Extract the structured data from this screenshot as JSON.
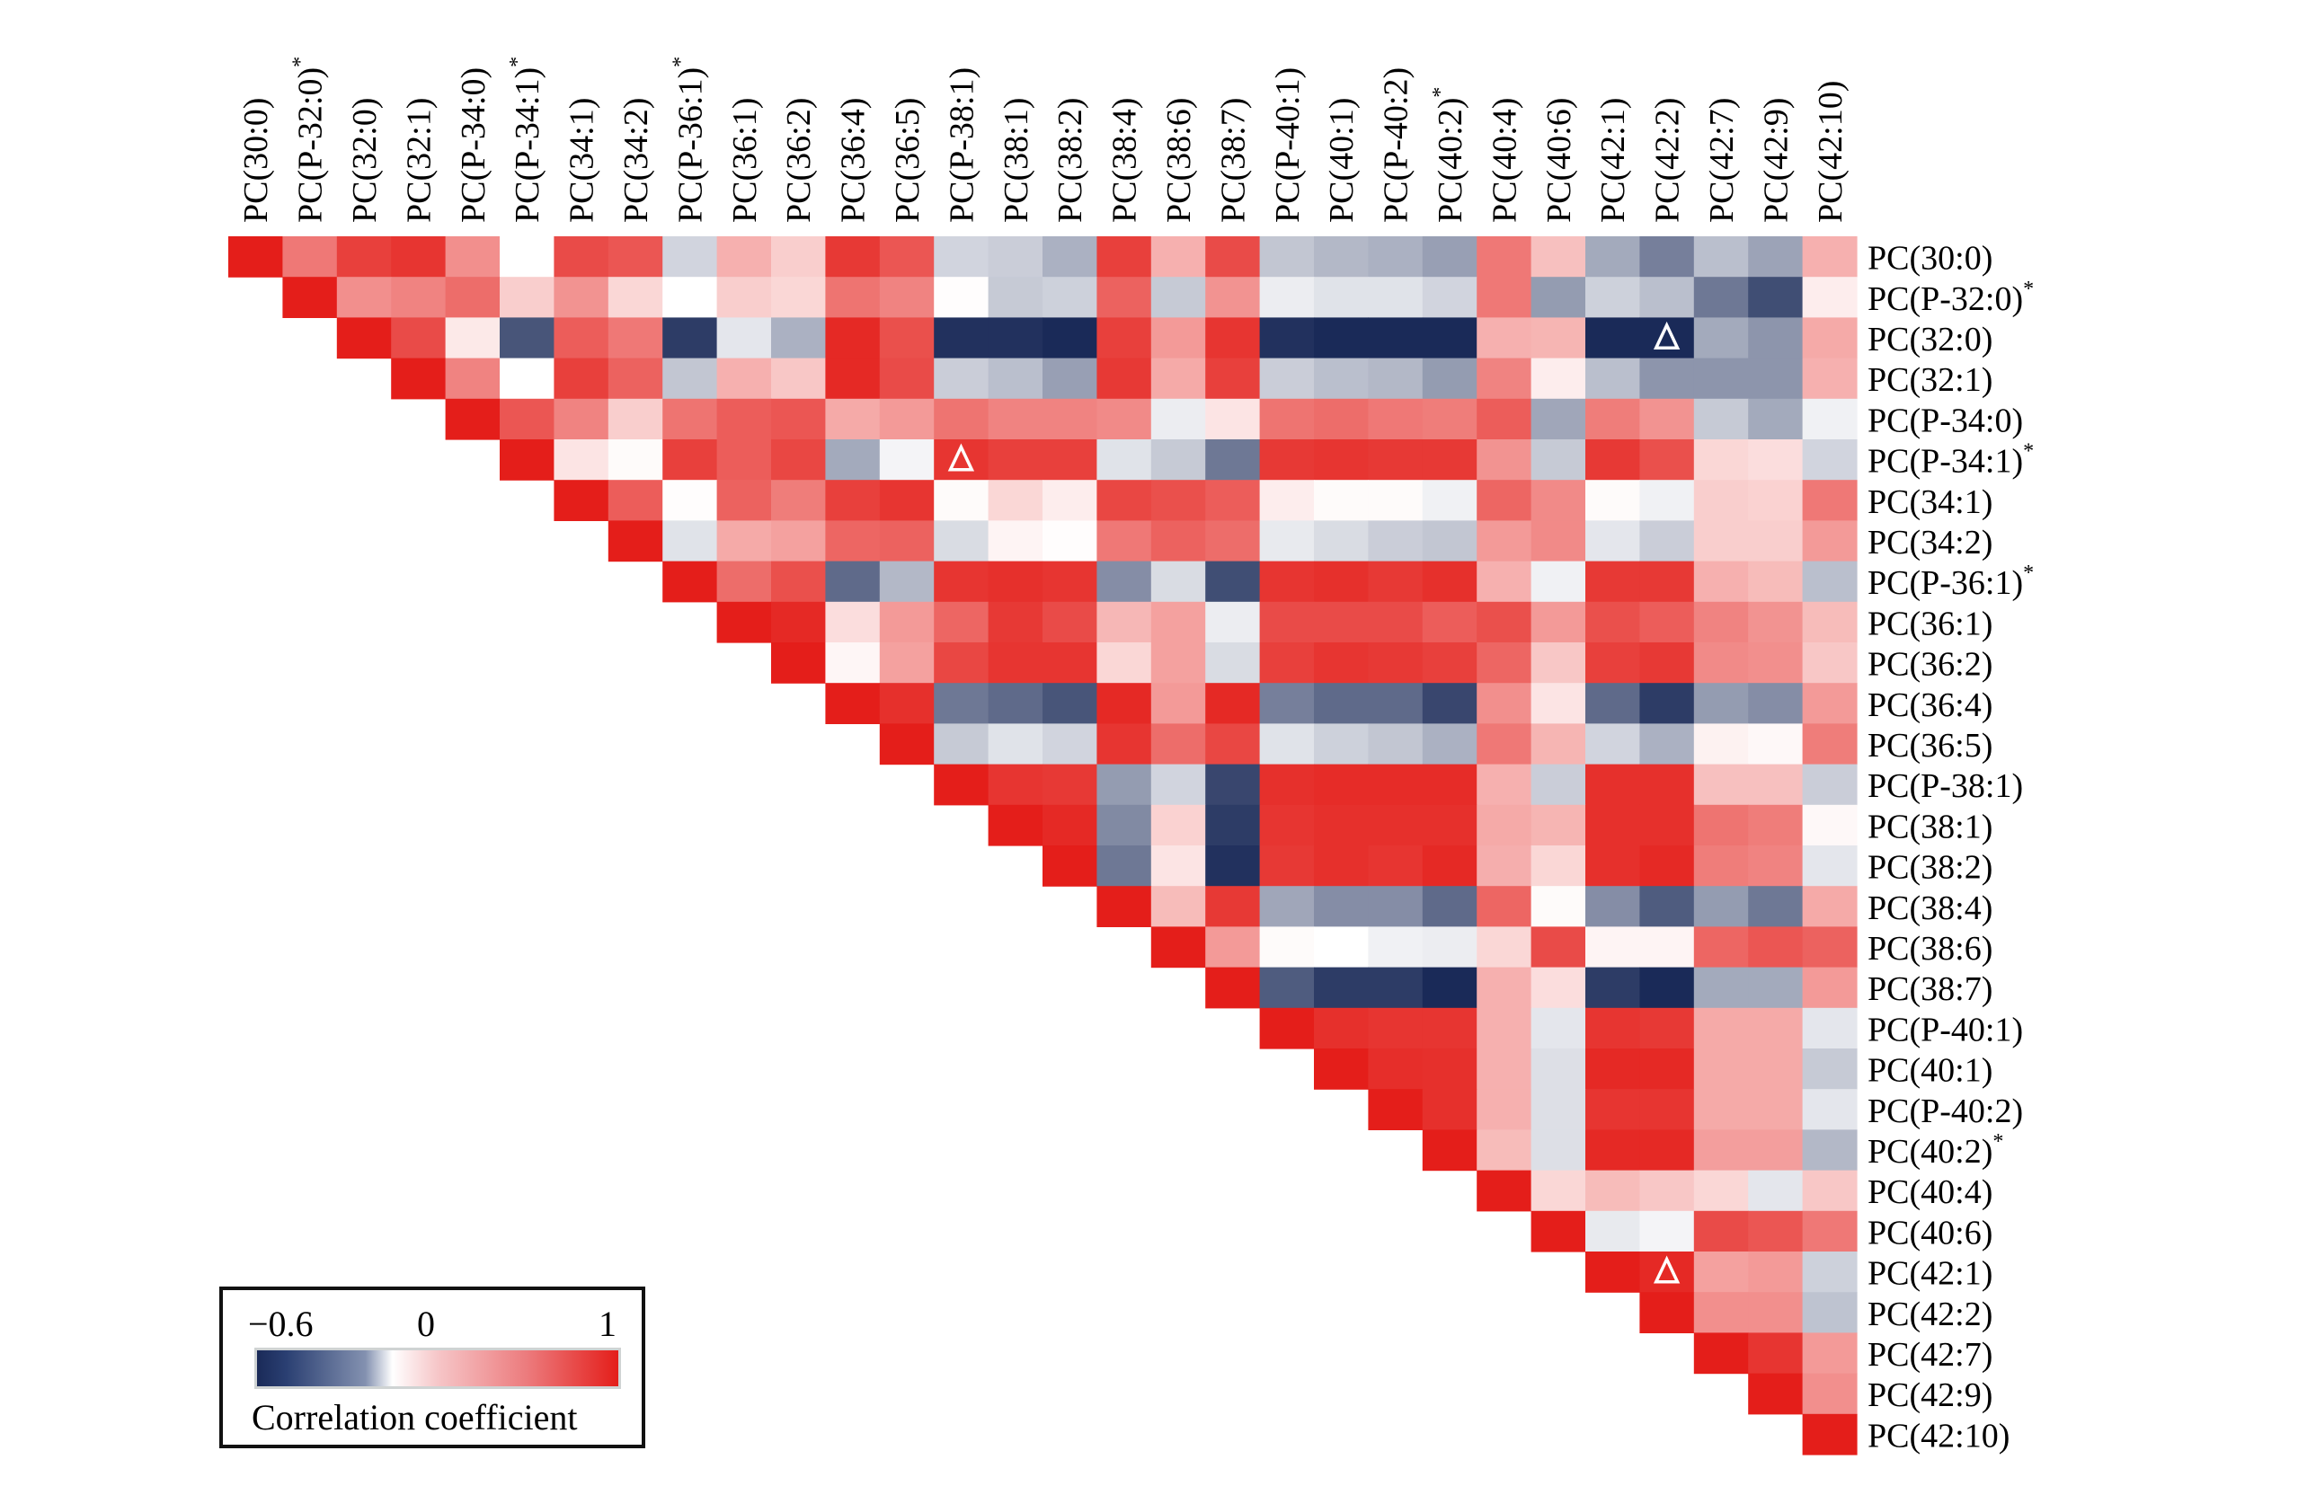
{
  "chart_data": {
    "type": "heatmap",
    "title": "",
    "layout": "upper-triangular correlation matrix, column labels on top (rotated), row labels on right",
    "labels": [
      {
        "name": "PC(30:0)",
        "flag": ""
      },
      {
        "name": "PC(P-32:0)",
        "flag": "*"
      },
      {
        "name": "PC(32:0)",
        "flag": ""
      },
      {
        "name": "PC(32:1)",
        "flag": ""
      },
      {
        "name": "PC(P-34:0)",
        "flag": ""
      },
      {
        "name": "PC(P-34:1)",
        "flag": "*"
      },
      {
        "name": "PC(34:1)",
        "flag": ""
      },
      {
        "name": "PC(34:2)",
        "flag": ""
      },
      {
        "name": "PC(P-36:1)",
        "flag": "*"
      },
      {
        "name": "PC(36:1)",
        "flag": ""
      },
      {
        "name": "PC(36:2)",
        "flag": ""
      },
      {
        "name": "PC(36:4)",
        "flag": ""
      },
      {
        "name": "PC(36:5)",
        "flag": ""
      },
      {
        "name": "PC(P-38:1)",
        "flag": ""
      },
      {
        "name": "PC(38:1)",
        "flag": ""
      },
      {
        "name": "PC(38:2)",
        "flag": ""
      },
      {
        "name": "PC(38:4)",
        "flag": ""
      },
      {
        "name": "PC(38:6)",
        "flag": ""
      },
      {
        "name": "PC(38:7)",
        "flag": ""
      },
      {
        "name": "PC(P-40:1)",
        "flag": ""
      },
      {
        "name": "PC(40:1)",
        "flag": ""
      },
      {
        "name": "PC(P-40:2)",
        "flag": ""
      },
      {
        "name": "PC(40:2)",
        "flag": "*"
      },
      {
        "name": "PC(40:4)",
        "flag": ""
      },
      {
        "name": "PC(40:6)",
        "flag": ""
      },
      {
        "name": "PC(42:1)",
        "flag": ""
      },
      {
        "name": "PC(42:2)",
        "flag": ""
      },
      {
        "name": "PC(42:7)",
        "flag": ""
      },
      {
        "name": "PC(42:9)",
        "flag": ""
      },
      {
        "name": "PC(42:10)",
        "flag": ""
      }
    ],
    "upper_triangle_rows": [
      [
        1,
        0.6,
        0.85,
        0.9,
        0.5,
        0.0,
        0.8,
        0.75,
        -0.12,
        0.35,
        0.22,
        0.88,
        0.75,
        -0.12,
        -0.14,
        -0.22,
        0.85,
        0.35,
        0.8,
        -0.16,
        -0.2,
        -0.22,
        -0.27,
        0.6,
        0.28,
        -0.24,
        -0.36,
        -0.18,
        -0.26,
        0.35
      ],
      [
        1,
        0.5,
        0.55,
        0.65,
        0.22,
        0.48,
        0.18,
        0.0,
        0.22,
        0.18,
        0.62,
        0.55,
        0.01,
        -0.15,
        -0.13,
        0.7,
        -0.15,
        0.48,
        -0.05,
        -0.08,
        -0.08,
        -0.12,
        0.6,
        -0.28,
        -0.13,
        -0.18,
        -0.38,
        -0.5,
        0.08
      ],
      [
        1,
        0.8,
        0.1,
        -0.48,
        0.72,
        0.6,
        -0.55,
        -0.07,
        -0.22,
        0.95,
        0.78,
        -0.58,
        -0.58,
        -0.6,
        0.85,
        0.45,
        0.9,
        -0.58,
        -0.6,
        -0.6,
        -0.6,
        0.35,
        0.33,
        -0.6,
        -0.6,
        -0.24,
        -0.3,
        0.38
      ],
      [
        1,
        0.55,
        0.0,
        0.85,
        0.7,
        -0.16,
        0.35,
        0.25,
        0.95,
        0.8,
        -0.14,
        -0.18,
        -0.27,
        0.88,
        0.38,
        0.85,
        -0.14,
        -0.18,
        -0.2,
        -0.28,
        0.55,
        0.08,
        -0.18,
        -0.3,
        -0.3,
        -0.3,
        0.35
      ],
      [
        1,
        0.75,
        0.55,
        0.22,
        0.62,
        0.72,
        0.75,
        0.38,
        0.45,
        0.62,
        0.55,
        0.55,
        0.52,
        -0.05,
        0.12,
        0.62,
        0.65,
        0.6,
        0.58,
        0.72,
        -0.25,
        0.58,
        0.48,
        -0.15,
        -0.24,
        -0.04
      ],
      [
        1,
        0.12,
        0.02,
        0.85,
        0.72,
        0.82,
        -0.24,
        -0.03,
        0.9,
        0.85,
        0.85,
        -0.08,
        -0.15,
        -0.38,
        0.88,
        0.9,
        0.88,
        0.88,
        0.48,
        -0.15,
        0.88,
        0.78,
        0.18,
        0.15,
        -0.12
      ],
      [
        1,
        0.72,
        0.01,
        0.7,
        0.58,
        0.85,
        0.9,
        0.02,
        0.18,
        0.08,
        0.82,
        0.78,
        0.72,
        0.08,
        0.02,
        0.02,
        -0.04,
        0.68,
        0.52,
        0.02,
        -0.04,
        0.22,
        0.2,
        0.6
      ],
      [
        1,
        -0.08,
        0.38,
        0.42,
        0.68,
        0.7,
        -0.1,
        0.05,
        0.01,
        0.6,
        0.7,
        0.65,
        -0.06,
        -0.1,
        -0.14,
        -0.16,
        0.45,
        0.52,
        -0.07,
        -0.14,
        0.22,
        0.22,
        0.45
      ],
      [
        1,
        0.65,
        0.78,
        -0.42,
        -0.2,
        0.9,
        0.92,
        0.9,
        -0.32,
        -0.1,
        -0.5,
        0.9,
        0.92,
        0.88,
        0.92,
        0.35,
        -0.04,
        0.88,
        0.88,
        0.35,
        0.3,
        -0.18
      ],
      [
        1,
        0.95,
        0.15,
        0.45,
        0.68,
        0.88,
        0.8,
        0.32,
        0.42,
        -0.05,
        0.8,
        0.8,
        0.8,
        0.72,
        0.78,
        0.45,
        0.78,
        0.72,
        0.55,
        0.48,
        0.3
      ],
      [
        1,
        0.04,
        0.42,
        0.82,
        0.9,
        0.9,
        0.18,
        0.42,
        -0.1,
        0.85,
        0.9,
        0.88,
        0.85,
        0.68,
        0.25,
        0.85,
        0.88,
        0.52,
        0.5,
        0.25
      ],
      [
        1,
        0.92,
        -0.38,
        -0.42,
        -0.48,
        0.95,
        0.45,
        0.95,
        -0.36,
        -0.42,
        -0.42,
        -0.52,
        0.5,
        0.12,
        -0.42,
        -0.55,
        -0.28,
        -0.32,
        0.45
      ],
      [
        1,
        -0.15,
        -0.08,
        -0.12,
        0.9,
        0.65,
        0.82,
        -0.08,
        -0.13,
        -0.16,
        -0.22,
        0.6,
        0.33,
        -0.12,
        -0.22,
        0.06,
        0.03,
        0.58
      ],
      [
        1,
        0.9,
        0.88,
        -0.28,
        -0.12,
        -0.52,
        0.92,
        0.94,
        0.94,
        0.94,
        0.35,
        -0.14,
        0.92,
        0.92,
        0.28,
        0.28,
        -0.14
      ],
      [
        1,
        0.95,
        -0.33,
        0.2,
        -0.55,
        0.9,
        0.92,
        0.92,
        0.92,
        0.38,
        0.33,
        0.92,
        0.92,
        0.62,
        0.58,
        0.03
      ],
      [
        1,
        -0.38,
        0.12,
        -0.58,
        0.88,
        0.92,
        0.9,
        0.95,
        0.36,
        0.18,
        0.92,
        0.95,
        0.58,
        0.55,
        -0.07
      ],
      [
        1,
        0.3,
        0.88,
        -0.25,
        -0.32,
        -0.32,
        -0.42,
        0.68,
        0.02,
        -0.32,
        -0.46,
        -0.28,
        -0.38,
        0.38
      ],
      [
        1,
        0.45,
        0.02,
        0.0,
        -0.04,
        -0.05,
        0.18,
        0.8,
        0.05,
        0.05,
        0.68,
        0.75,
        0.7
      ],
      [
        1,
        -0.46,
        -0.55,
        -0.55,
        -0.6,
        0.35,
        0.15,
        -0.55,
        -0.6,
        -0.24,
        -0.24,
        0.45
      ],
      [
        1,
        0.92,
        0.9,
        0.9,
        0.35,
        -0.07,
        0.9,
        0.88,
        0.38,
        0.38,
        -0.07
      ],
      [
        1,
        0.93,
        0.92,
        0.35,
        -0.09,
        0.95,
        0.95,
        0.38,
        0.38,
        -0.15
      ],
      [
        1,
        0.92,
        0.35,
        -0.09,
        0.9,
        0.9,
        0.38,
        0.38,
        -0.07
      ],
      [
        1,
        0.3,
        -0.09,
        0.95,
        0.95,
        0.43,
        0.43,
        -0.2
      ],
      [
        1,
        0.18,
        0.3,
        0.25,
        0.18,
        -0.07,
        0.25
      ],
      [
        1,
        -0.06,
        -0.03,
        0.8,
        0.75,
        0.6
      ],
      [
        1,
        0.95,
        0.42,
        0.45,
        -0.13
      ],
      [
        1,
        0.5,
        0.5,
        -0.17
      ],
      [
        1,
        0.9,
        0.45
      ],
      [
        1,
        0.5
      ],
      [
        1
      ]
    ],
    "markers": [
      {
        "row": "PC(32:0)",
        "col": "PC(42:2)",
        "symbol": "△"
      },
      {
        "row": "PC(P-34:1)",
        "col": "PC(P-38:1)",
        "symbol": "△"
      },
      {
        "row": "PC(42:1)",
        "col": "PC(42:2)",
        "symbol": "△"
      }
    ],
    "colorbar": {
      "title": "Correlation coefficient",
      "range": [
        -0.6,
        1
      ],
      "ticks": [
        {
          "value": -0.6,
          "label": "−0.6"
        },
        {
          "value": 0,
          "label": "0"
        },
        {
          "value": 1,
          "label": "1"
        }
      ],
      "colors": {
        "min": "#1a2a58",
        "mid": "#ffffff",
        "max": "#e41e1a"
      },
      "placement": "bottom-left"
    },
    "asterisk_symbol": "*",
    "grid": false
  }
}
